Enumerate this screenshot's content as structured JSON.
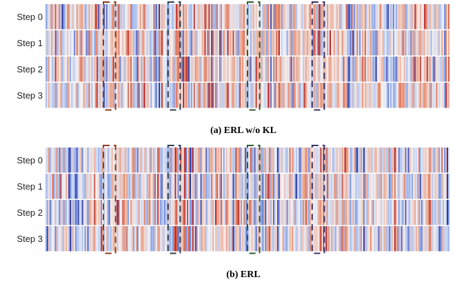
{
  "chart_data": [
    {
      "type": "heatmap",
      "caption": "(a) ERL w/o KL",
      "rows": [
        "Step 0",
        "Step 1",
        "Step 2",
        "Step 3"
      ],
      "columns": 300,
      "colormap": "diverging blue-white-red",
      "highlight_boxes": [
        {
          "color": "#8b3a1a",
          "columns": [
            43,
            51
          ]
        },
        {
          "color": "#2f3b4c",
          "columns": [
            91,
            99
          ]
        },
        {
          "color": "#2f5a33",
          "columns": [
            150,
            158
          ]
        },
        {
          "color": "#3b3060",
          "columns": [
            198,
            206
          ]
        }
      ],
      "seed": 17,
      "red_bias": 0.18
    },
    {
      "type": "heatmap",
      "caption": "(b) ERL",
      "rows": [
        "Step 0",
        "Step 1",
        "Step 2",
        "Step 3"
      ],
      "columns": 300,
      "colormap": "diverging blue-white-red",
      "highlight_boxes": [
        {
          "color": "#8b3a1a",
          "columns": [
            43,
            51
          ]
        },
        {
          "color": "#2f3b4c",
          "columns": [
            91,
            99
          ]
        },
        {
          "color": "#2f5a33",
          "columns": [
            150,
            158
          ]
        },
        {
          "color": "#3b3060",
          "columns": [
            198,
            206
          ]
        }
      ],
      "seed": 53,
      "red_bias": 0.0
    }
  ]
}
